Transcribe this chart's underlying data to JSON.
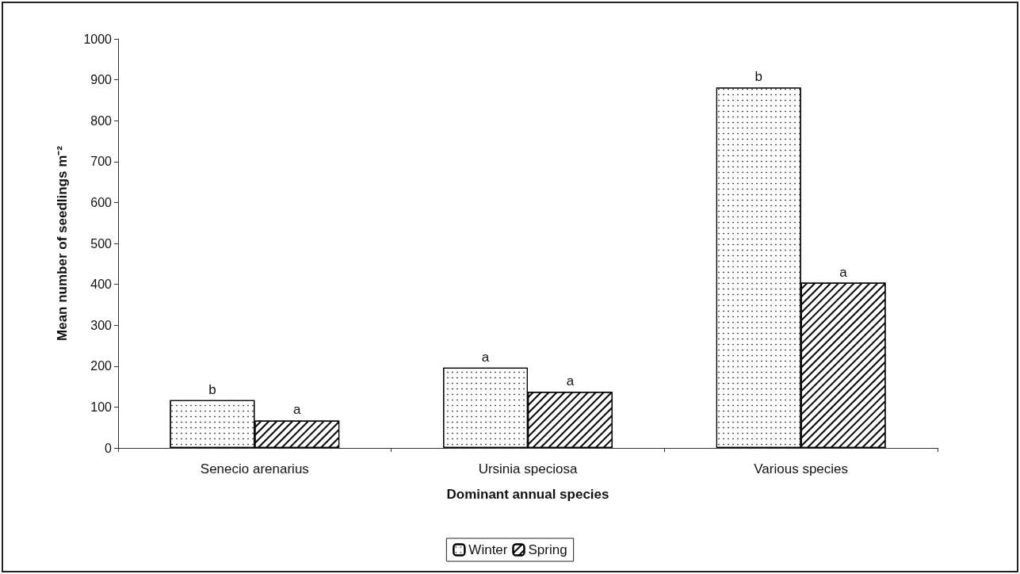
{
  "chart_data": {
    "type": "bar",
    "xlabel": "Dominant annual species",
    "ylabel": "Mean number of seedlings m⁻²",
    "categories": [
      "Senecio arenarius",
      "Ursinia speciosa",
      "Various species"
    ],
    "series": [
      {
        "name": "Winter",
        "color": "#ffffff",
        "values": [
          117,
          196,
          881
        ],
        "value_labels": [
          "b",
          "a",
          "b"
        ]
      },
      {
        "name": "Spring",
        "color": "#ffffff",
        "values": [
          67,
          137,
          404
        ],
        "value_labels": [
          "a",
          "a",
          "a"
        ]
      }
    ],
    "ylim": [
      0,
      1000
    ],
    "yticks": [
      0,
      100,
      200,
      300,
      400,
      500,
      600,
      700,
      800,
      900,
      1000
    ],
    "grid": false,
    "legend": "bottom"
  }
}
